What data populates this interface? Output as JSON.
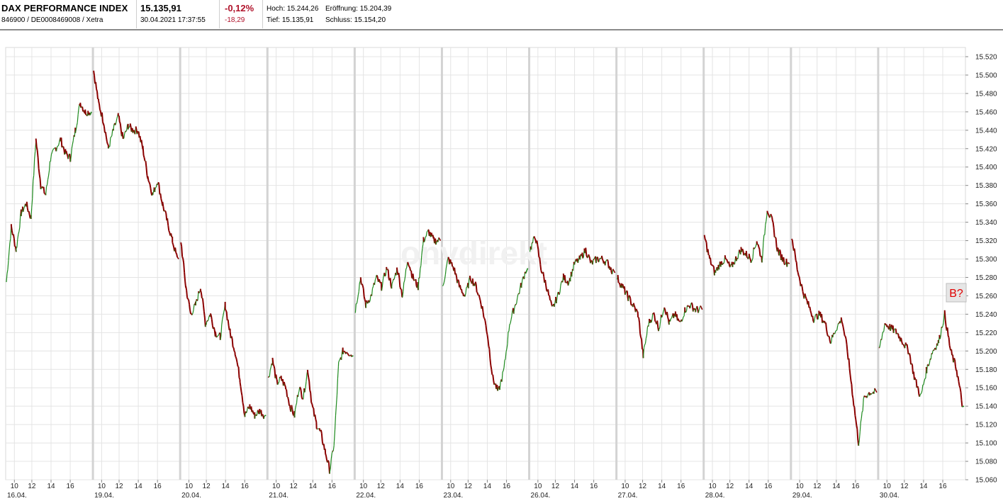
{
  "header": {
    "name": "DAX PERFORMANCE INDEX",
    "isin": "846900 / DE0008469008 / Xetra",
    "price": "15.135,91",
    "datetime": "30.04.2021 17:37:55",
    "change_pct": "-0,12%",
    "change_abs": "-18,29",
    "high": "Hoch: 15.244,26",
    "low": "Tief: 15.135,91",
    "open": "Eröffnung: 15.204,39",
    "close": "Schluss: 15.154,20"
  },
  "watermark": "onvdirekt",
  "badge": "B?",
  "colors": {
    "up": "#1e8a1e",
    "down": "#8b0000",
    "grid": "#e4e4e4",
    "day_sep": "#d3d3d3",
    "neg": "#b0122a"
  },
  "chart_data": {
    "type": "line",
    "ylim": [
      15060,
      15530
    ],
    "yticks": [
      "15.060",
      "15.080",
      "15.100",
      "15.120",
      "15.140",
      "15.160",
      "15.180",
      "15.200",
      "15.220",
      "15.240",
      "15.260",
      "15.280",
      "15.300",
      "15.320",
      "15.340",
      "15.360",
      "15.380",
      "15.400",
      "15.420",
      "15.440",
      "15.460",
      "15.480",
      "15.500",
      "15.520"
    ],
    "days": [
      {
        "date": "16.04.",
        "hours": [
          "10",
          "12",
          "14",
          "16"
        ],
        "path": [
          15275,
          15335,
          15310,
          15350,
          15360,
          15345,
          15430,
          15380,
          15370,
          15410,
          15420,
          15430,
          15415,
          15410,
          15440,
          15470,
          15460,
          15460
        ]
      },
      {
        "date": "19.04.",
        "hours": [
          "10",
          "12",
          "14",
          "16"
        ],
        "path": [
          15505,
          15470,
          15450,
          15420,
          15440,
          15455,
          15430,
          15445,
          15440,
          15440,
          15420,
          15390,
          15370,
          15385,
          15360,
          15340,
          15320,
          15300
        ]
      },
      {
        "date": "20.04.",
        "hours": [
          "10",
          "12",
          "14",
          "16"
        ],
        "path": [
          15320,
          15270,
          15240,
          15250,
          15270,
          15230,
          15240,
          15220,
          15215,
          15250,
          15220,
          15200,
          15170,
          15130,
          15140,
          15130,
          15135,
          15130
        ]
      },
      {
        "date": "21.04.",
        "hours": [
          "10",
          "12",
          "14",
          "16"
        ],
        "path": [
          15170,
          15190,
          15165,
          15170,
          15160,
          15140,
          15130,
          15160,
          15150,
          15180,
          15140,
          15120,
          15110,
          15090,
          15070,
          15100,
          15185,
          15200,
          15200,
          15195
        ]
      },
      {
        "date": "22.04.",
        "hours": [
          "10",
          "12",
          "14",
          "16"
        ],
        "path": [
          15245,
          15280,
          15250,
          15260,
          15280,
          15270,
          15290,
          15270,
          15290,
          15260,
          15300,
          15280,
          15270,
          15320,
          15330,
          15320,
          15320
        ]
      },
      {
        "date": "23.04.",
        "hours": [
          "10",
          "12",
          "14",
          "16"
        ],
        "path": [
          15270,
          15300,
          15290,
          15270,
          15260,
          15280,
          15270,
          15250,
          15220,
          15170,
          15155,
          15180,
          15230,
          15250,
          15270,
          15290
        ]
      },
      {
        "date": "26.04.",
        "hours": [
          "10",
          "12",
          "14",
          "16"
        ],
        "path": [
          15310,
          15325,
          15290,
          15270,
          15245,
          15260,
          15280,
          15275,
          15295,
          15300,
          15310,
          15295,
          15300,
          15300,
          15295,
          15285
        ]
      },
      {
        "date": "27.04.",
        "hours": [
          "10",
          "12",
          "14",
          "16"
        ],
        "path": [
          15280,
          15270,
          15260,
          15250,
          15240,
          15195,
          15230,
          15240,
          15225,
          15250,
          15230,
          15240,
          15230,
          15245,
          15250,
          15245,
          15245
        ]
      },
      {
        "date": "28.04.",
        "hours": [
          "10",
          "12",
          "14",
          "16"
        ],
        "path": [
          15325,
          15300,
          15285,
          15295,
          15300,
          15290,
          15300,
          15310,
          15305,
          15300,
          15320,
          15300,
          15355,
          15340,
          15310,
          15300,
          15295
        ]
      },
      {
        "date": "29.04.",
        "hours": [
          "10",
          "12",
          "14",
          "16"
        ],
        "path": [
          15325,
          15290,
          15265,
          15250,
          15235,
          15240,
          15230,
          15210,
          15225,
          15235,
          15200,
          15150,
          15100,
          15150,
          15155,
          15155
        ]
      },
      {
        "date": "30.04.",
        "hours": [
          "10",
          "12",
          "14",
          "16"
        ],
        "path": [
          15200,
          15230,
          15225,
          15220,
          15210,
          15200,
          15170,
          15150,
          15180,
          15200,
          15210,
          15240,
          15200,
          15180,
          15140
        ]
      }
    ]
  }
}
